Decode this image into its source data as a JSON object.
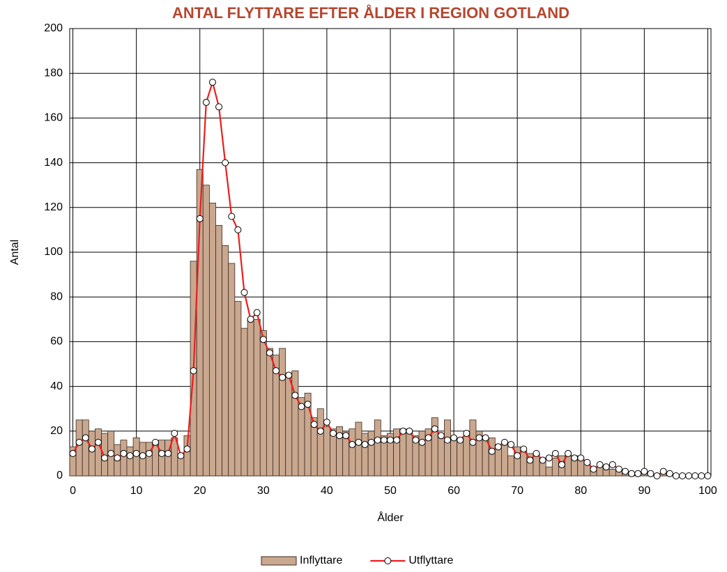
{
  "chart_data": {
    "type": "bar-line",
    "title": "ANTAL FLYTTARE EFTER ÅLDER I REGION GOTLAND",
    "x_label": "Ålder",
    "y_label": "Antal",
    "x": [
      0,
      1,
      2,
      3,
      4,
      5,
      6,
      7,
      8,
      9,
      10,
      11,
      12,
      13,
      14,
      15,
      16,
      17,
      18,
      19,
      20,
      21,
      22,
      23,
      24,
      25,
      26,
      27,
      28,
      29,
      30,
      31,
      32,
      33,
      34,
      35,
      36,
      37,
      38,
      39,
      40,
      41,
      42,
      43,
      44,
      45,
      46,
      47,
      48,
      49,
      50,
      51,
      52,
      53,
      54,
      55,
      56,
      57,
      58,
      59,
      60,
      61,
      62,
      63,
      64,
      65,
      66,
      67,
      68,
      69,
      70,
      71,
      72,
      73,
      74,
      75,
      76,
      77,
      78,
      79,
      80,
      81,
      82,
      83,
      84,
      85,
      86,
      87,
      88,
      89,
      90,
      91,
      92,
      93,
      94,
      95,
      96,
      97,
      98,
      99,
      100
    ],
    "series": [
      {
        "name": "Inflyttare",
        "type": "bar",
        "color": "#c9a88f",
        "values": [
          13,
          25,
          25,
          20,
          21,
          19,
          20,
          14,
          16,
          13,
          17,
          15,
          15,
          15,
          16,
          16,
          17,
          10,
          18,
          96,
          137,
          130,
          122,
          112,
          103,
          95,
          78,
          66,
          70,
          70,
          65,
          57,
          54,
          57,
          46,
          47,
          35,
          37,
          26,
          30,
          22,
          21,
          22,
          20,
          21,
          24,
          19,
          20,
          25,
          18,
          19,
          21,
          21,
          20,
          18,
          20,
          21,
          26,
          19,
          25,
          17,
          17,
          18,
          25,
          20,
          17,
          17,
          14,
          15,
          9,
          13,
          11,
          10,
          10,
          8,
          4,
          8,
          9,
          9,
          9,
          8,
          6,
          4,
          4,
          4,
          3,
          2,
          1,
          1,
          1,
          1,
          1,
          0,
          1,
          1,
          0,
          0,
          0,
          0,
          0,
          0
        ]
      },
      {
        "name": "Utflyttare",
        "type": "line",
        "color": "#ee1c1c",
        "values": [
          10,
          15,
          17,
          12,
          15,
          8,
          10,
          8,
          10,
          9,
          10,
          9,
          10,
          15,
          10,
          10,
          19,
          9,
          12,
          47,
          115,
          167,
          176,
          165,
          140,
          116,
          110,
          82,
          70,
          73,
          61,
          55,
          47,
          44,
          45,
          36,
          31,
          32,
          23,
          20,
          24,
          19,
          18,
          18,
          14,
          15,
          14,
          15,
          16,
          16,
          16,
          16,
          20,
          20,
          16,
          15,
          17,
          21,
          18,
          16,
          17,
          16,
          19,
          15,
          17,
          17,
          11,
          13,
          15,
          14,
          9,
          12,
          7,
          10,
          7,
          8,
          10,
          5,
          10,
          8,
          8,
          6,
          3,
          5,
          4,
          5,
          3,
          2,
          1,
          1,
          2,
          1,
          0,
          2,
          1,
          0,
          0,
          0,
          0,
          0,
          0
        ]
      }
    ],
    "xlim": [
      -0.5,
      100.5
    ],
    "xticks": [
      0,
      10,
      20,
      30,
      40,
      50,
      60,
      70,
      80,
      90,
      100
    ],
    "ylim": [
      0,
      200
    ],
    "yticks": [
      0,
      20,
      40,
      60,
      80,
      100,
      120,
      140,
      160,
      180,
      200
    ],
    "grid": true,
    "legend": "bottom"
  }
}
